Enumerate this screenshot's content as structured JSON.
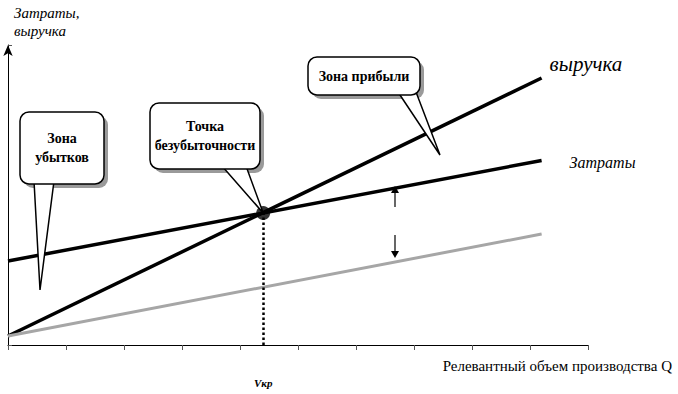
{
  "chart_data": {
    "type": "line",
    "y_label": "Затраты,\nвыручка",
    "x_label": "Релевантный объем производства Q",
    "x": [
      0,
      9.2
    ],
    "series": [
      {
        "name": "выручка",
        "color": "#000000",
        "values": [
          0.3,
          8.9
        ]
      },
      {
        "name": "Затраты",
        "color": "#000000",
        "values": [
          2.8,
          6.15
        ]
      },
      {
        "color": "#a6a6a6",
        "values": [
          0.3,
          3.7
        ]
      }
    ],
    "break_even": {
      "x": 4.4,
      "y": 4.4,
      "label": "Точка\nбезубыточности",
      "x_label": "Vкр",
      "color": "#000000",
      "marker": "circle",
      "line_style": "dotted"
    },
    "annotations": [
      "Зона\nубытков",
      "Зона прибыли"
    ],
    "xlim": [
      0,
      10
    ],
    "xticks": [
      0,
      1,
      2,
      3,
      4,
      5,
      6,
      7,
      8,
      9,
      10
    ],
    "ylim": [
      0,
      10
    ],
    "yticks": [
      0,
      10
    ],
    "grid": false,
    "tick_labels": false
  }
}
